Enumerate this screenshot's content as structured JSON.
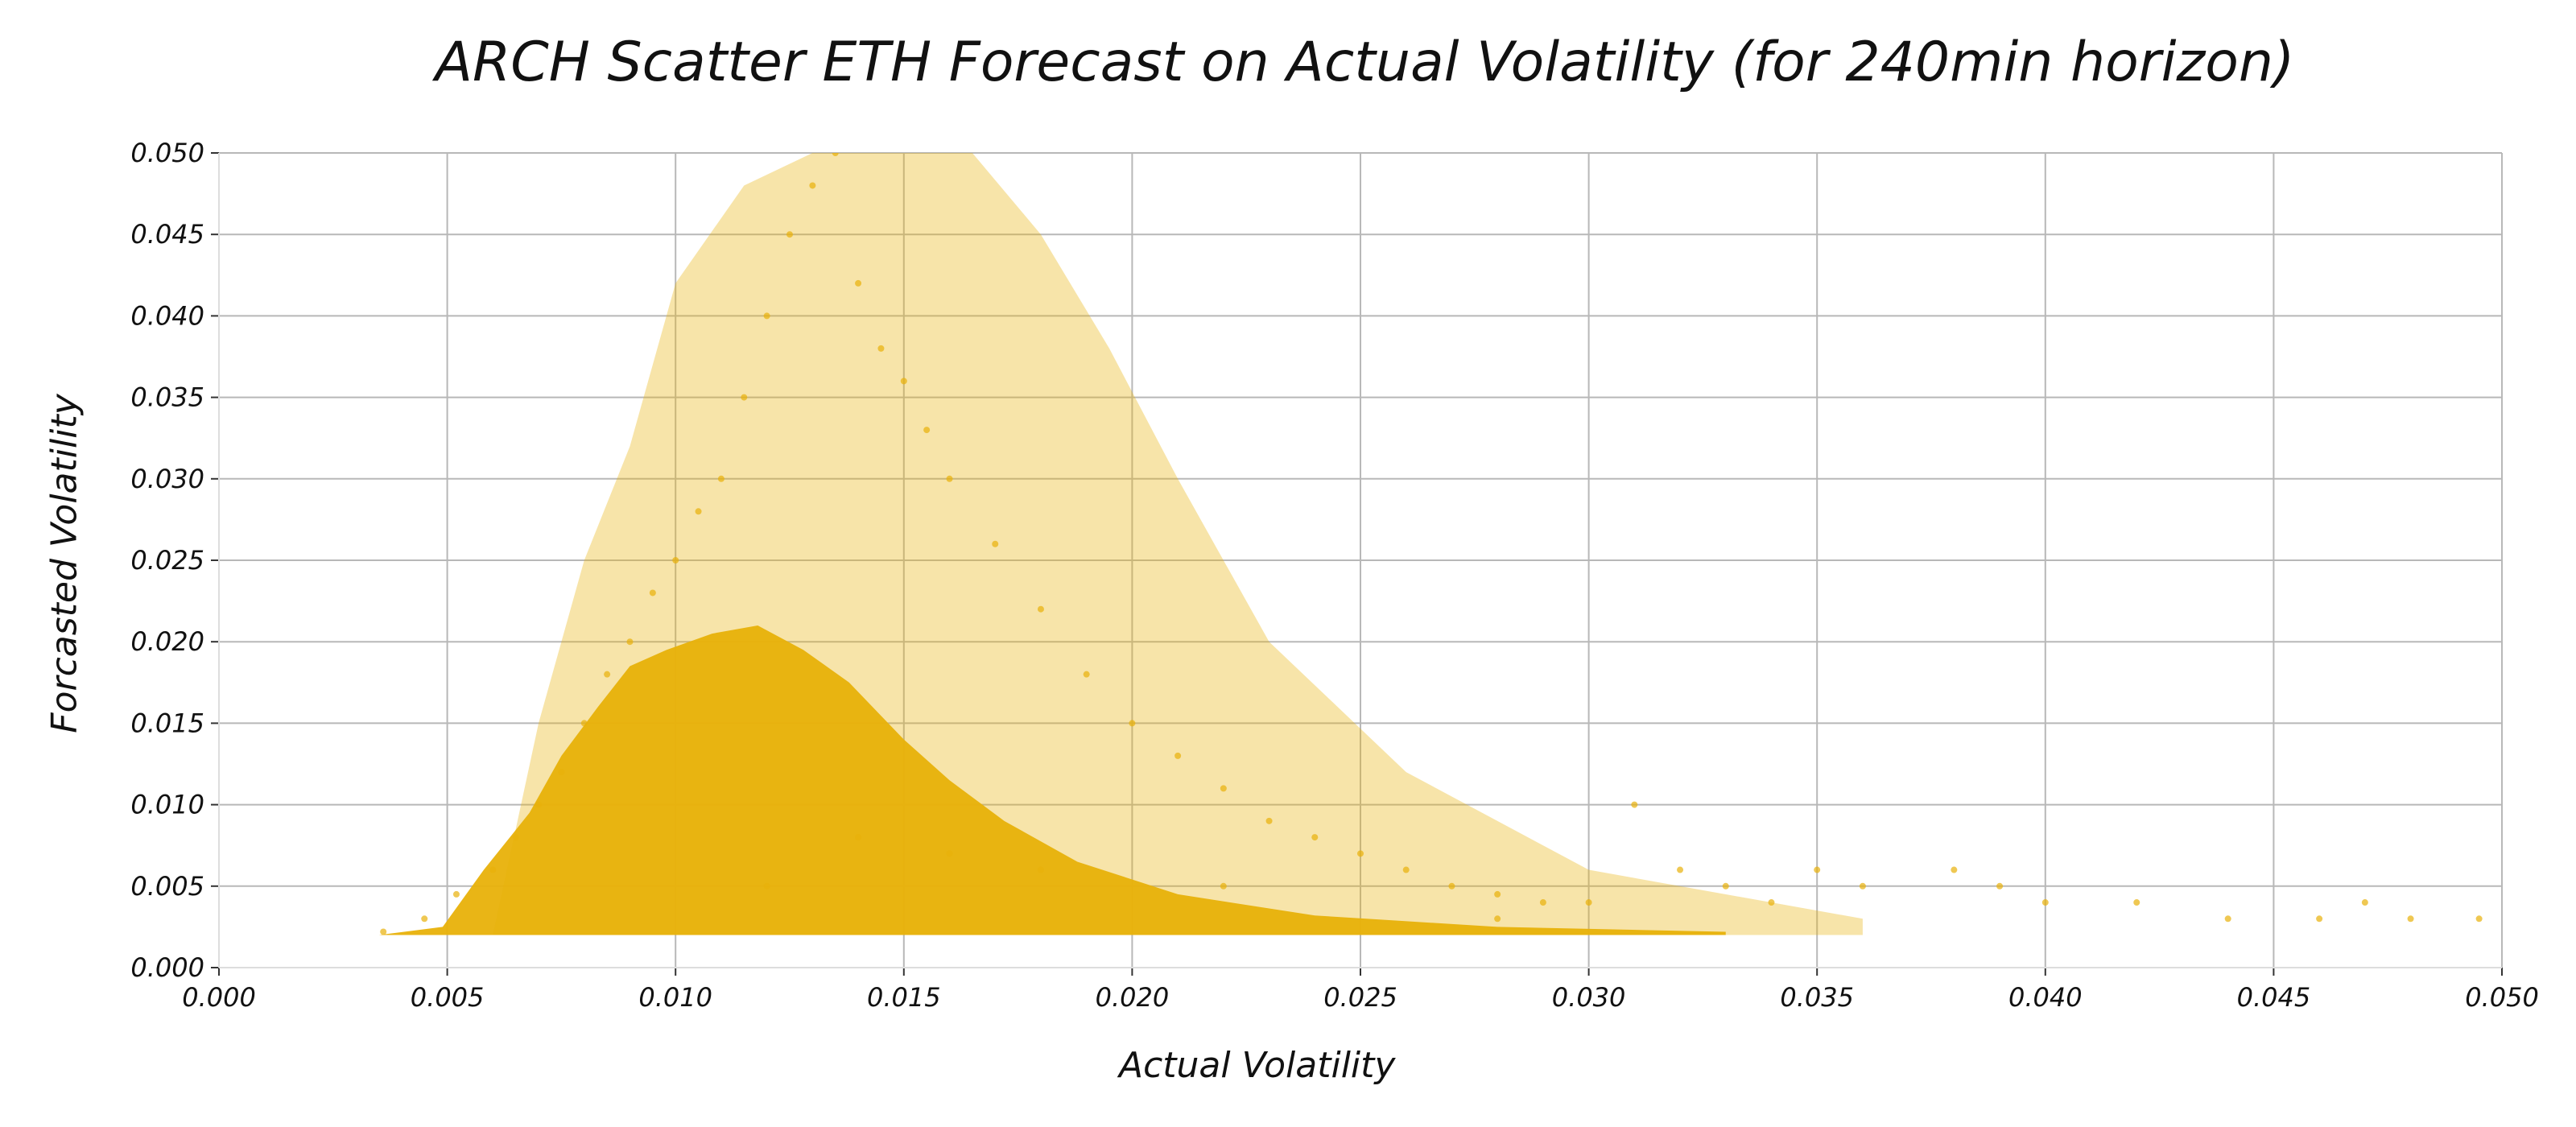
{
  "chart_data": {
    "type": "scatter",
    "title": "ARCH Scatter ETH Forecast on Actual Volatility (for 240min horizon)",
    "xlabel": "Actual Volatility",
    "ylabel": "Forcasted Volatility",
    "xlim": [
      0.0,
      0.05
    ],
    "ylim": [
      0.0,
      0.05
    ],
    "x_ticks": [
      "0.000",
      "0.005",
      "0.010",
      "0.015",
      "0.020",
      "0.025",
      "0.030",
      "0.035",
      "0.040",
      "0.045",
      "0.050"
    ],
    "y_ticks": [
      "0.000",
      "0.005",
      "0.010",
      "0.015",
      "0.020",
      "0.025",
      "0.030",
      "0.035",
      "0.040",
      "0.045",
      "0.050"
    ],
    "grid": true,
    "legend": "none",
    "point_color": "#E8B10A",
    "series": [
      {
        "x": [
          0.0036,
          0.0045,
          0.0052,
          0.006,
          0.0065,
          0.007,
          0.0075,
          0.008,
          0.0085,
          0.009,
          0.0095,
          0.01,
          0.0105,
          0.011,
          0.0115,
          0.012,
          0.0125,
          0.013,
          0.0135,
          0.014,
          0.0145,
          0.015,
          0.0155,
          0.016,
          0.017,
          0.018,
          0.019,
          0.02,
          0.021,
          0.022,
          0.023,
          0.024,
          0.025,
          0.026,
          0.027,
          0.028,
          0.029,
          0.03,
          0.031,
          0.032,
          0.033,
          0.034,
          0.035,
          0.036,
          0.038,
          0.039,
          0.04,
          0.042,
          0.044,
          0.046,
          0.047,
          0.048,
          0.0495,
          0.012,
          0.014,
          0.016,
          0.018,
          0.022,
          0.028
        ],
        "y": [
          0.0022,
          0.003,
          0.0045,
          0.006,
          0.008,
          0.01,
          0.012,
          0.015,
          0.018,
          0.02,
          0.023,
          0.025,
          0.028,
          0.03,
          0.035,
          0.04,
          0.045,
          0.048,
          0.05,
          0.042,
          0.038,
          0.036,
          0.033,
          0.03,
          0.026,
          0.022,
          0.018,
          0.015,
          0.013,
          0.011,
          0.009,
          0.008,
          0.007,
          0.006,
          0.005,
          0.0045,
          0.004,
          0.004,
          0.01,
          0.006,
          0.005,
          0.004,
          0.006,
          0.005,
          0.006,
          0.005,
          0.004,
          0.004,
          0.003,
          0.003,
          0.004,
          0.003,
          0.003,
          0.005,
          0.008,
          0.007,
          0.006,
          0.005,
          0.003
        ]
      }
    ]
  }
}
